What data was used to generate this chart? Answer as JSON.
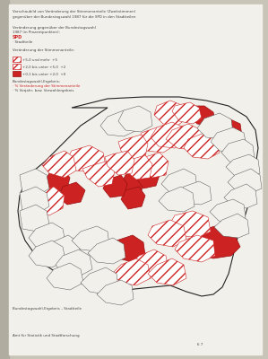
{
  "page_bg": "#c8c4b8",
  "paper_bg": "#f2f0eb",
  "spine_color": "#b0aca0",
  "title1": "Vorschaubild von Veränderung der Stimmenanteile (Zweitstimmen)",
  "title2": "gegenüber der Bundestagswahl 1987 für die SPD in den Stadtteilen",
  "block1_line1": "Veränderung gegenüber der Bundestagswahl",
  "block1_line2": "1987 (in Prozentpunkten):",
  "block1_line3": "SPD",
  "block1_line4": "· Stadtteile",
  "legend_title": "Veränderung der Stimmenanteile:",
  "legend_items": [
    {
      "label": "+5,0 und mehr  +5",
      "fc": "#f0f0f0",
      "ec": "#cc2222",
      "hatch": "///"
    },
    {
      "label": "+2,0 bis unter +5,0  +2",
      "fc": "#f0f0f0",
      "ec": "#cc2222",
      "hatch": "///"
    },
    {
      "label": "+0,1 bis unter +2,0  +0",
      "fc": "#cc2222",
      "ec": "#cc2222",
      "hatch": ""
    }
  ],
  "block2_line1": "Bundestagswahl-Ergebnis:",
  "block2_line2": "· % Veränderung der Stimmenanteile",
  "block2_line3": "· % Vorjahr- bzw. Vorwahlergebnis",
  "footnote1": "Bundestagswahl-Ergebnis – Stadtteile",
  "footnote2": "Amt für Statistik und Stadtforschung",
  "page_number": "6 7",
  "map": {
    "bg": "#f2f0eb",
    "outline": "#222222",
    "lw": 0.6,
    "solid_red": "#cc2222",
    "hatch_fc": "#f5f5f5",
    "hatch_ec": "#cc2222",
    "white_fc": "#f2f0eb",
    "white_ec": "#555555"
  }
}
